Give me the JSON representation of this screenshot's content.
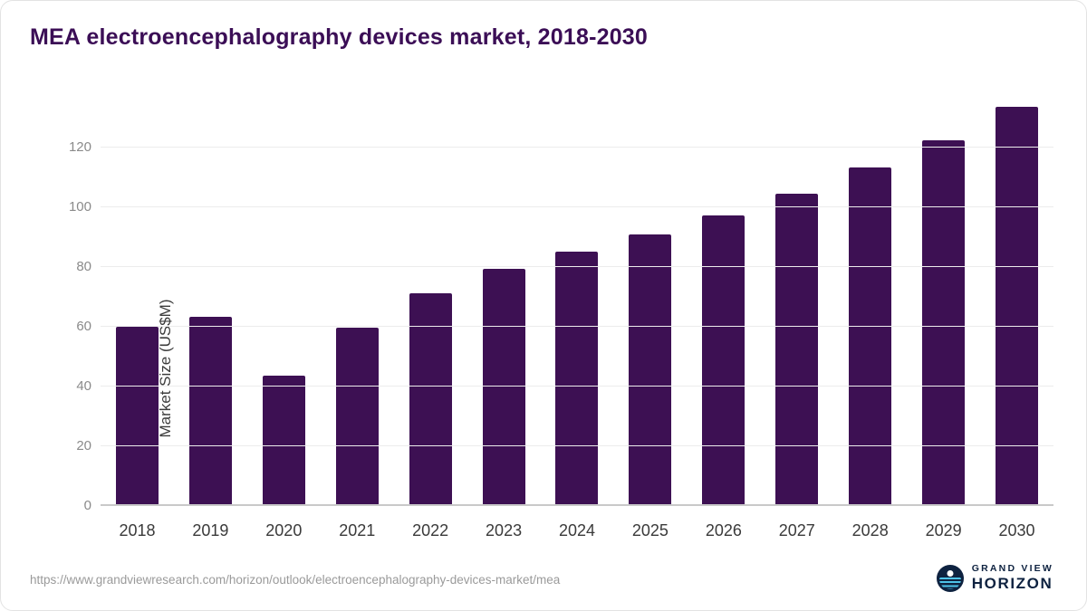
{
  "chart_data": {
    "type": "bar",
    "title": "MEA electroencephalography devices market, 2018-2030",
    "ylabel": "Market Size (US$M)",
    "categories": [
      "2018",
      "2019",
      "2020",
      "2021",
      "2022",
      "2023",
      "2024",
      "2025",
      "2026",
      "2027",
      "2028",
      "2029",
      "2030"
    ],
    "values": [
      60.0,
      63.4,
      43.5,
      59.8,
      71.2,
      79.5,
      85.2,
      90.8,
      97.3,
      104.7,
      113.2,
      122.3,
      133.5
    ],
    "yticks": [
      0,
      20,
      40,
      60,
      80,
      100,
      120
    ],
    "ylim": [
      0,
      140
    ],
    "bar_color": "#3d1053",
    "grid": true,
    "legend_position": "none"
  },
  "footer": {
    "source_url": "https://www.grandviewresearch.com/horizon/outlook/electroencephalography-devices-market/mea",
    "brand_top": "GRAND VIEW",
    "brand_bottom": "HORIZON"
  }
}
